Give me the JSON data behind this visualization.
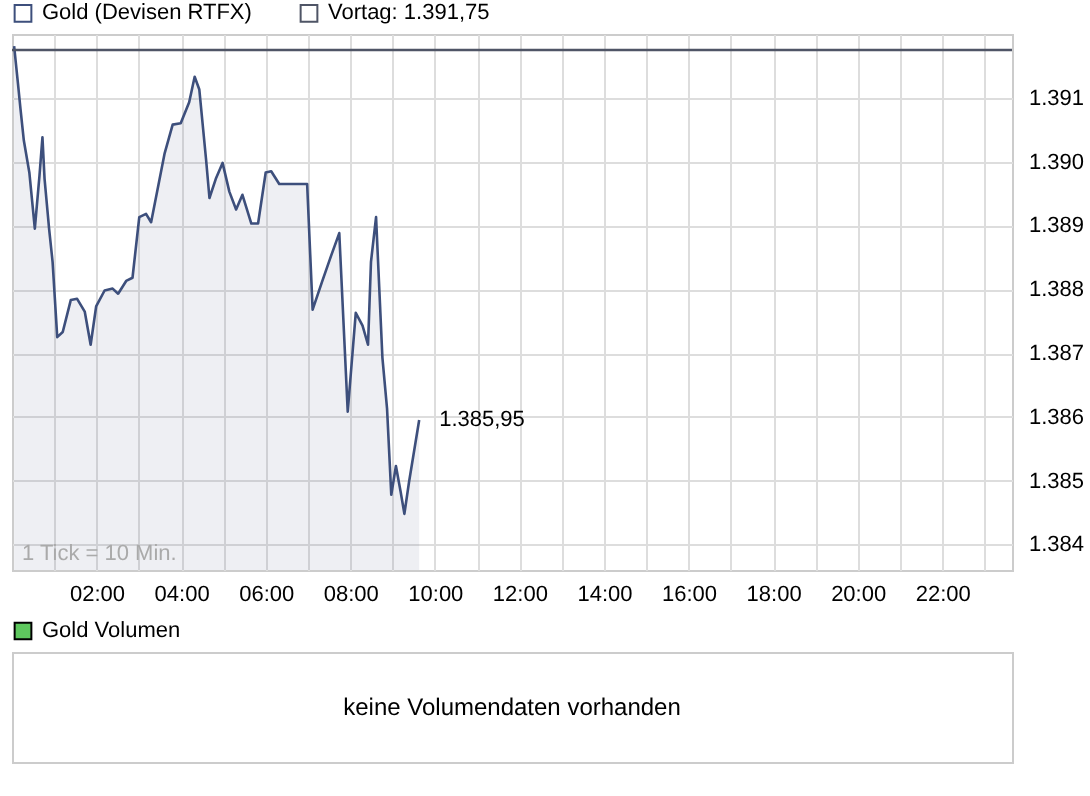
{
  "chart_data": [
    {
      "type": "area",
      "xlim": [
        0,
        23.65
      ],
      "ylim": [
        1383.6,
        1392
      ],
      "xticks": [
        {
          "value": 1,
          "label": null
        },
        {
          "value": 2,
          "label": "02:00"
        },
        {
          "value": 3,
          "label": null
        },
        {
          "value": 4,
          "label": "04:00"
        },
        {
          "value": 5,
          "label": null
        },
        {
          "value": 6,
          "label": "06:00"
        },
        {
          "value": 7,
          "label": null
        },
        {
          "value": 8,
          "label": "08:00"
        },
        {
          "value": 9,
          "label": null
        },
        {
          "value": 10,
          "label": "10:00"
        },
        {
          "value": 11,
          "label": null
        },
        {
          "value": 12,
          "label": "12:00"
        },
        {
          "value": 13,
          "label": null
        },
        {
          "value": 14,
          "label": "14:00"
        },
        {
          "value": 15,
          "label": null
        },
        {
          "value": 16,
          "label": "16:00"
        },
        {
          "value": 17,
          "label": null
        },
        {
          "value": 18,
          "label": "18:00"
        },
        {
          "value": 19,
          "label": null
        },
        {
          "value": 20,
          "label": "20:00"
        },
        {
          "value": 21,
          "label": null
        },
        {
          "value": 22,
          "label": "22:00"
        },
        {
          "value": 23,
          "label": null
        }
      ],
      "yticks": [
        {
          "value": 1384,
          "label": "1.384"
        },
        {
          "value": 1385,
          "label": "1.385"
        },
        {
          "value": 1386,
          "label": "1.386"
        },
        {
          "value": 1387,
          "label": "1.387"
        },
        {
          "value": 1388,
          "label": "1.388"
        },
        {
          "value": 1389,
          "label": "1.389"
        },
        {
          "value": 1390,
          "label": "1.390"
        },
        {
          "value": 1391,
          "label": "1.391"
        }
      ],
      "x": [
        0.05,
        0.14,
        0.2,
        0.28,
        0.41,
        0.54,
        0.65,
        0.72,
        0.77,
        0.88,
        0.96,
        1.07,
        1.2,
        1.39,
        1.54,
        1.72,
        1.86,
        1.99,
        2.19,
        2.38,
        2.51,
        2.7,
        2.85,
        3.01,
        3.17,
        3.29,
        3.61,
        3.8,
        3.99,
        4.19,
        4.32,
        4.43,
        4.59,
        4.67,
        4.82,
        4.98,
        5.14,
        5.3,
        5.45,
        5.66,
        5.82,
        6.0,
        6.13,
        6.32,
        6.98,
        7.11,
        7.34,
        7.55,
        7.74,
        7.94,
        8.13,
        8.29,
        8.42,
        8.49,
        8.61,
        8.76,
        8.87,
        8.97,
        9.08,
        9.19,
        9.28,
        9.39,
        9.63
      ],
      "series": [
        {
          "name": "Gold (Devisen RTFX)",
          "color": "#3d4f7c",
          "values": [
            1391.81,
            1391.23,
            1390.83,
            1390.33,
            1389.83,
            1388.95,
            1389.78,
            1390.38,
            1389.73,
            1388.93,
            1388.43,
            1387.25,
            1387.33,
            1387.83,
            1387.85,
            1387.65,
            1387.13,
            1387.73,
            1387.98,
            1388.01,
            1387.93,
            1388.13,
            1388.18,
            1389.13,
            1389.18,
            1389.05,
            1390.13,
            1390.58,
            1390.6,
            1390.93,
            1391.33,
            1391.13,
            1390.03,
            1389.43,
            1389.73,
            1389.98,
            1389.53,
            1389.25,
            1389.48,
            1389.03,
            1389.03,
            1389.83,
            1389.85,
            1389.65,
            1389.65,
            1387.68,
            1388.13,
            1388.53,
            1388.88,
            1386.08,
            1387.63,
            1387.43,
            1387.13,
            1388.43,
            1389.13,
            1386.93,
            1386.13,
            1384.78,
            1385.23,
            1384.83,
            1384.48,
            1384.98,
            1385.95
          ],
          "value_labels": [
            null,
            null,
            null,
            null,
            null,
            null,
            null,
            null,
            null,
            null,
            null,
            null,
            null,
            null,
            null,
            null,
            null,
            null,
            null,
            null,
            null,
            null,
            null,
            null,
            null,
            null,
            null,
            null,
            null,
            null,
            null,
            null,
            null,
            null,
            null,
            null,
            null,
            null,
            null,
            null,
            null,
            null,
            null,
            null,
            null,
            null,
            null,
            null,
            null,
            null,
            null,
            null,
            null,
            null,
            null,
            null,
            null,
            null,
            null,
            null,
            null,
            null,
            "1.385,95"
          ]
        }
      ],
      "ref_lines": [
        {
          "axis": "y",
          "value": 1391.75,
          "label": "Vortag: 1.391,75",
          "color": "#4f5566"
        }
      ],
      "annotations": [
        "1 Tick = 10 Min."
      ],
      "grid": true,
      "legend": "top left"
    },
    {
      "type": "other",
      "series": [
        {
          "name": "Gold Volumen",
          "color": "#5ec85e"
        }
      ],
      "annotations": [
        "keine Volumendaten vorhanden"
      ],
      "legend": "top left"
    }
  ]
}
